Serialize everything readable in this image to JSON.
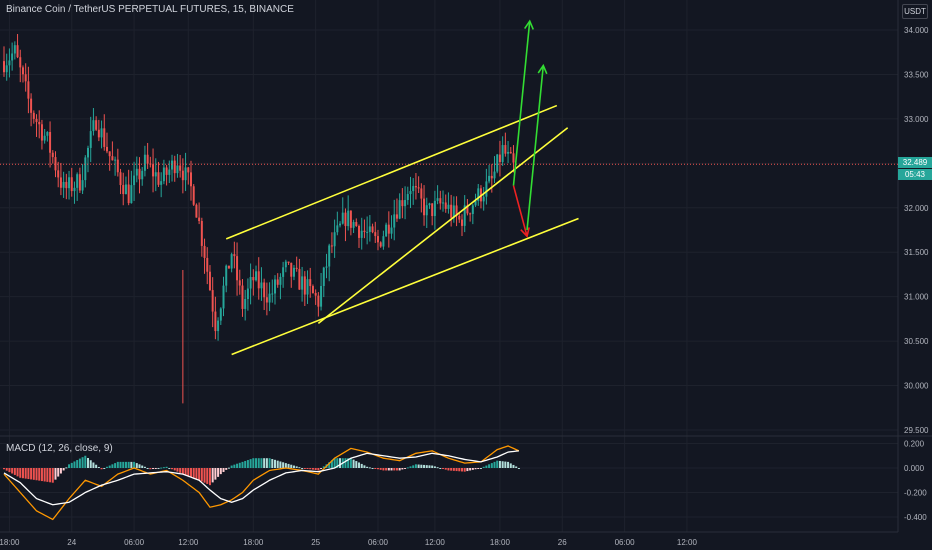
{
  "header": {
    "title": "Binance Coin / TetherUS PERPETUAL FUTURES, 15, BINANCE",
    "currency": "USDT"
  },
  "price_axis": {
    "ticks": [
      "34.000",
      "33.500",
      "33.000",
      "32.500",
      "32.000",
      "31.500",
      "31.000",
      "30.500",
      "30.000",
      "29.500"
    ],
    "ticks_values": [
      34.0,
      33.5,
      33.0,
      32.5,
      32.0,
      31.5,
      31.0,
      30.5,
      30.0,
      29.5
    ],
    "last_price": "32.489",
    "last_price_value": 32.489,
    "countdown": "05:43"
  },
  "macd": {
    "label": "MACD (12, 26, close, 9)",
    "ticks": [
      "0.200",
      "0.000",
      "-0.200",
      "-0.400"
    ],
    "ticks_values": [
      0.2,
      0.0,
      -0.2,
      -0.4
    ]
  },
  "time_axis": {
    "labels": [
      "18:00",
      "24",
      "06:00",
      "12:00",
      "18:00",
      "25",
      "06:00",
      "12:00",
      "18:00",
      "26",
      "06:00",
      "12:00"
    ]
  },
  "colors": {
    "background": "#131722",
    "up_candle": "#26a69a",
    "down_candle": "#ef5350",
    "trend_lines": "#ffff3b",
    "bull_arrows": "#33dd33",
    "bear_arrow": "#ee2222",
    "macd_line": "#ffffff",
    "signal_line": "#ff9800",
    "last_price_line": "#ef5350"
  },
  "chart_data": {
    "type": "candlestick",
    "symbol": "BNBUSDT Perpetual",
    "interval": "15",
    "xlabel": "",
    "ylabel": "",
    "ylim": [
      29.4,
      34.2
    ],
    "price_series_points": [
      {
        "t": 0,
        "p": 33.65
      },
      {
        "t": 4,
        "p": 33.75
      },
      {
        "t": 10,
        "p": 33.1
      },
      {
        "t": 16,
        "p": 32.75
      },
      {
        "t": 22,
        "p": 32.2
      },
      {
        "t": 28,
        "p": 32.3
      },
      {
        "t": 34,
        "p": 33.0
      },
      {
        "t": 40,
        "p": 32.5
      },
      {
        "t": 46,
        "p": 32.15
      },
      {
        "t": 52,
        "p": 32.5
      },
      {
        "t": 58,
        "p": 32.3
      },
      {
        "t": 64,
        "p": 32.55
      },
      {
        "t": 70,
        "p": 32.15
      },
      {
        "t": 74,
        "p": 31.5
      },
      {
        "t": 78,
        "p": 30.7
      },
      {
        "t": 80,
        "p": 30.95
      },
      {
        "t": 84,
        "p": 31.5
      },
      {
        "t": 88,
        "p": 30.9
      },
      {
        "t": 92,
        "p": 31.2
      },
      {
        "t": 98,
        "p": 31.0
      },
      {
        "t": 104,
        "p": 31.3
      },
      {
        "t": 110,
        "p": 31.15
      },
      {
        "t": 116,
        "p": 30.95
      },
      {
        "t": 120,
        "p": 31.5
      },
      {
        "t": 126,
        "p": 31.9
      },
      {
        "t": 132,
        "p": 31.75
      },
      {
        "t": 138,
        "p": 31.6
      },
      {
        "t": 144,
        "p": 31.95
      },
      {
        "t": 150,
        "p": 32.25
      },
      {
        "t": 156,
        "p": 31.95
      },
      {
        "t": 162,
        "p": 32.05
      },
      {
        "t": 168,
        "p": 31.85
      },
      {
        "t": 174,
        "p": 32.1
      },
      {
        "t": 180,
        "p": 32.3
      },
      {
        "t": 184,
        "p": 32.65
      },
      {
        "t": 188,
        "p": 32.45
      }
    ],
    "drawings": {
      "trend_lines": [
        {
          "from": [
            82,
            31.65
          ],
          "to": [
            204,
            33.15
          ]
        },
        {
          "from": [
            84,
            30.35
          ],
          "to": [
            212,
            31.88
          ]
        },
        {
          "from": [
            116,
            30.7
          ],
          "to": [
            208,
            32.9
          ]
        }
      ],
      "arrows": [
        {
          "color": "bull",
          "from": [
            188,
            32.25
          ],
          "to": [
            194,
            34.1
          ]
        },
        {
          "color": "bear",
          "from": [
            188,
            32.25
          ],
          "to": [
            193,
            31.68
          ]
        },
        {
          "color": "bull",
          "from": [
            193,
            31.75
          ],
          "to": [
            199,
            33.6
          ]
        }
      ]
    },
    "macd_ylim": [
      -0.5,
      0.25
    ],
    "macd_points": [
      {
        "t": 0,
        "m": -0.05,
        "s": -0.04
      },
      {
        "t": 6,
        "m": -0.2,
        "s": -0.12
      },
      {
        "t": 12,
        "m": -0.35,
        "s": -0.25
      },
      {
        "t": 18,
        "m": -0.42,
        "s": -0.3
      },
      {
        "t": 24,
        "m": -0.25,
        "s": -0.28
      },
      {
        "t": 30,
        "m": -0.1,
        "s": -0.2
      },
      {
        "t": 36,
        "m": -0.15,
        "s": -0.14
      },
      {
        "t": 42,
        "m": -0.05,
        "s": -0.1
      },
      {
        "t": 48,
        "m": 0.0,
        "s": -0.05
      },
      {
        "t": 54,
        "m": -0.05,
        "s": -0.04
      },
      {
        "t": 60,
        "m": -0.02,
        "s": -0.03
      },
      {
        "t": 66,
        "m": -0.1,
        "s": -0.05
      },
      {
        "t": 72,
        "m": -0.2,
        "s": -0.1
      },
      {
        "t": 76,
        "m": -0.32,
        "s": -0.18
      },
      {
        "t": 80,
        "m": -0.3,
        "s": -0.25
      },
      {
        "t": 84,
        "m": -0.26,
        "s": -0.28
      },
      {
        "t": 88,
        "m": -0.2,
        "s": -0.25
      },
      {
        "t": 92,
        "m": -0.1,
        "s": -0.18
      },
      {
        "t": 98,
        "m": -0.02,
        "s": -0.1
      },
      {
        "t": 104,
        "m": 0.0,
        "s": -0.04
      },
      {
        "t": 110,
        "m": -0.02,
        "s": -0.02
      },
      {
        "t": 116,
        "m": -0.05,
        "s": -0.03
      },
      {
        "t": 122,
        "m": 0.08,
        "s": 0.0
      },
      {
        "t": 128,
        "m": 0.16,
        "s": 0.08
      },
      {
        "t": 134,
        "m": 0.13,
        "s": 0.12
      },
      {
        "t": 140,
        "m": 0.08,
        "s": 0.1
      },
      {
        "t": 146,
        "m": 0.06,
        "s": 0.08
      },
      {
        "t": 152,
        "m": 0.12,
        "s": 0.09
      },
      {
        "t": 158,
        "m": 0.14,
        "s": 0.12
      },
      {
        "t": 164,
        "m": 0.08,
        "s": 0.1
      },
      {
        "t": 170,
        "m": 0.04,
        "s": 0.07
      },
      {
        "t": 176,
        "m": 0.05,
        "s": 0.05
      },
      {
        "t": 182,
        "m": 0.15,
        "s": 0.09
      },
      {
        "t": 186,
        "m": 0.18,
        "s": 0.13
      },
      {
        "t": 190,
        "m": 0.14,
        "s": 0.14
      }
    ],
    "time_axis_t": [
      2,
      25,
      48,
      68,
      92,
      115,
      138,
      159,
      183,
      206,
      229,
      252
    ],
    "grid": true,
    "legend": "none"
  }
}
